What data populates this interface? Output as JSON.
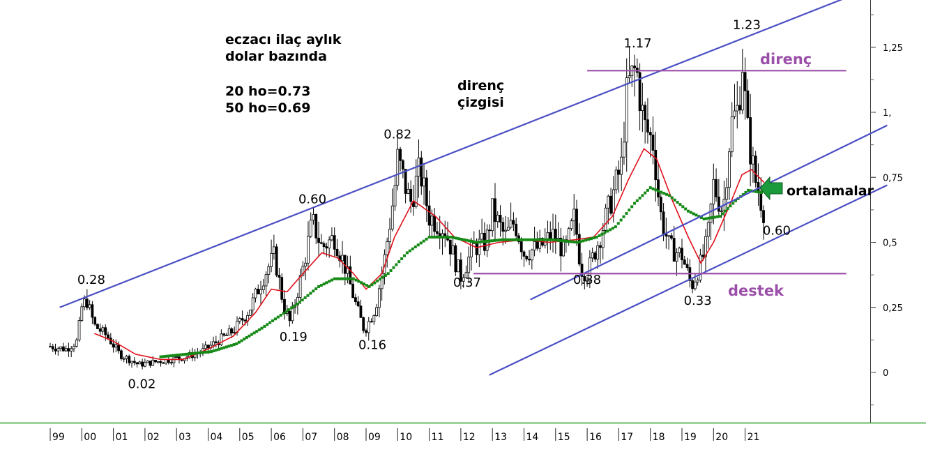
{
  "chart_data": {
    "type": "candlestick",
    "title_lines": [
      "eczacı ilaç aylık",
      "dolar bazında"
    ],
    "ma_lines": [
      "20 ho=0.73",
      "50 ho=0.69"
    ],
    "x_tick_labels": [
      "99",
      "00",
      "01",
      "02",
      "03",
      "04",
      "05",
      "06",
      "07",
      "08",
      "09",
      "10",
      "11",
      "12",
      "13",
      "14",
      "15",
      "16",
      "17",
      "18",
      "19",
      "20",
      "21"
    ],
    "y_tick_labels": [
      "0",
      "0,25",
      "0,5",
      "0,75",
      "1,",
      "1,25"
    ],
    "y_ticks": [
      0,
      0.25,
      0.5,
      0.75,
      1.0,
      1.25
    ],
    "ylim": [
      -0.18,
      1.4
    ],
    "xlim": [
      1999.0,
      2025.25
    ],
    "price_path": [
      [
        1999.0,
        0.1
      ],
      [
        1999.5,
        0.09
      ],
      [
        1999.85,
        0.12
      ],
      [
        2000.0,
        0.25
      ],
      [
        2000.15,
        0.28
      ],
      [
        2000.4,
        0.18
      ],
      [
        2000.8,
        0.14
      ],
      [
        2001.2,
        0.07
      ],
      [
        2001.8,
        0.03
      ],
      [
        2002.3,
        0.04
      ],
      [
        2002.8,
        0.05
      ],
      [
        2003.3,
        0.06
      ],
      [
        2003.8,
        0.08
      ],
      [
        2004.3,
        0.12
      ],
      [
        2004.8,
        0.16
      ],
      [
        2005.3,
        0.24
      ],
      [
        2005.8,
        0.38
      ],
      [
        2006.1,
        0.45
      ],
      [
        2006.4,
        0.25
      ],
      [
        2006.6,
        0.19
      ],
      [
        2007.0,
        0.4
      ],
      [
        2007.3,
        0.58
      ],
      [
        2007.6,
        0.48
      ],
      [
        2008.0,
        0.52
      ],
      [
        2008.3,
        0.42
      ],
      [
        2008.7,
        0.25
      ],
      [
        2008.95,
        0.16
      ],
      [
        2009.3,
        0.25
      ],
      [
        2009.6,
        0.45
      ],
      [
        2009.9,
        0.7
      ],
      [
        2010.0,
        0.82
      ],
      [
        2010.4,
        0.65
      ],
      [
        2010.7,
        0.78
      ],
      [
        2011.0,
        0.6
      ],
      [
        2011.5,
        0.55
      ],
      [
        2011.9,
        0.4
      ],
      [
        2012.0,
        0.37
      ],
      [
        2012.4,
        0.48
      ],
      [
        2012.8,
        0.5
      ],
      [
        2013.0,
        0.62
      ],
      [
        2013.4,
        0.52
      ],
      [
        2013.7,
        0.58
      ],
      [
        2014.0,
        0.46
      ],
      [
        2014.5,
        0.48
      ],
      [
        2014.9,
        0.53
      ],
      [
        2015.3,
        0.46
      ],
      [
        2015.6,
        0.6
      ],
      [
        2015.8,
        0.4
      ],
      [
        2016.0,
        0.38
      ],
      [
        2016.4,
        0.52
      ],
      [
        2016.8,
        0.68
      ],
      [
        2017.1,
        0.8
      ],
      [
        2017.2,
        1.02
      ],
      [
        2017.3,
        1.1
      ],
      [
        2017.55,
        1.17
      ],
      [
        2017.8,
        0.95
      ],
      [
        2018.1,
        0.88
      ],
      [
        2018.3,
        0.62
      ],
      [
        2018.6,
        0.48
      ],
      [
        2019.0,
        0.45
      ],
      [
        2019.3,
        0.33
      ],
      [
        2019.6,
        0.42
      ],
      [
        2019.8,
        0.5
      ],
      [
        2020.0,
        0.72
      ],
      [
        2020.3,
        0.62
      ],
      [
        2020.55,
        0.95
      ],
      [
        2020.8,
        1.02
      ],
      [
        2020.9,
        1.23
      ],
      [
        2021.05,
        0.95
      ],
      [
        2021.3,
        0.75
      ],
      [
        2021.6,
        0.62
      ],
      [
        2021.65,
        0.6
      ]
    ],
    "ma20": [
      [
        2000.4,
        0.15
      ],
      [
        2001.0,
        0.12
      ],
      [
        2001.7,
        0.07
      ],
      [
        2002.5,
        0.05
      ],
      [
        2003.2,
        0.05
      ],
      [
        2004.0,
        0.09
      ],
      [
        2004.8,
        0.14
      ],
      [
        2005.5,
        0.23
      ],
      [
        2006.0,
        0.32
      ],
      [
        2006.5,
        0.31
      ],
      [
        2007.0,
        0.38
      ],
      [
        2007.6,
        0.46
      ],
      [
        2008.1,
        0.44
      ],
      [
        2008.6,
        0.38
      ],
      [
        2009.0,
        0.32
      ],
      [
        2009.5,
        0.38
      ],
      [
        2009.9,
        0.52
      ],
      [
        2010.5,
        0.66
      ],
      [
        2011.2,
        0.6
      ],
      [
        2011.8,
        0.52
      ],
      [
        2012.5,
        0.48
      ],
      [
        2013.2,
        0.5
      ],
      [
        2014.0,
        0.51
      ],
      [
        2014.8,
        0.5
      ],
      [
        2015.6,
        0.51
      ],
      [
        2016.2,
        0.52
      ],
      [
        2016.8,
        0.6
      ],
      [
        2017.3,
        0.74
      ],
      [
        2017.8,
        0.86
      ],
      [
        2018.2,
        0.82
      ],
      [
        2018.7,
        0.66
      ],
      [
        2019.2,
        0.52
      ],
      [
        2019.6,
        0.42
      ],
      [
        2020.0,
        0.5
      ],
      [
        2020.5,
        0.64
      ],
      [
        2020.9,
        0.76
      ],
      [
        2021.2,
        0.78
      ],
      [
        2021.6,
        0.73
      ]
    ],
    "ma50": [
      [
        2002.5,
        0.06
      ],
      [
        2003.3,
        0.07
      ],
      [
        2004.1,
        0.08
      ],
      [
        2004.9,
        0.11
      ],
      [
        2005.7,
        0.17
      ],
      [
        2006.3,
        0.22
      ],
      [
        2006.9,
        0.27
      ],
      [
        2007.5,
        0.33
      ],
      [
        2008.0,
        0.36
      ],
      [
        2008.6,
        0.36
      ],
      [
        2009.1,
        0.33
      ],
      [
        2009.7,
        0.38
      ],
      [
        2010.3,
        0.46
      ],
      [
        2011.0,
        0.52
      ],
      [
        2011.7,
        0.52
      ],
      [
        2012.5,
        0.5
      ],
      [
        2013.3,
        0.51
      ],
      [
        2014.1,
        0.51
      ],
      [
        2014.9,
        0.51
      ],
      [
        2015.7,
        0.5
      ],
      [
        2016.3,
        0.52
      ],
      [
        2016.9,
        0.56
      ],
      [
        2017.5,
        0.65
      ],
      [
        2018.0,
        0.71
      ],
      [
        2018.6,
        0.68
      ],
      [
        2019.2,
        0.62
      ],
      [
        2019.7,
        0.59
      ],
      [
        2020.2,
        0.6
      ],
      [
        2020.7,
        0.66
      ],
      [
        2021.1,
        0.7
      ],
      [
        2021.6,
        0.69
      ]
    ],
    "channel_lines": [
      {
        "from": [
          1999.3,
          0.25
        ],
        "to": [
          2024.4,
          1.45
        ]
      },
      {
        "from": [
          2014.2,
          0.28
        ],
        "to": [
          2025.5,
          0.95
        ]
      },
      {
        "from": [
          2012.9,
          -0.01
        ],
        "to": [
          2025.5,
          0.72
        ]
      }
    ],
    "horizontal_levels": [
      {
        "value": 1.16,
        "from": 2016.0,
        "to": 2024.2,
        "label": "direnç"
      },
      {
        "value": 0.38,
        "from": 2012.4,
        "to": 2024.2,
        "label": "destek"
      }
    ],
    "annotations": [
      {
        "text": "0.28",
        "x": 2000.3,
        "y": 0.34
      },
      {
        "text": "0.02",
        "x": 2001.9,
        "y": -0.06
      },
      {
        "text": "0.60",
        "x": 2007.3,
        "y": 0.65
      },
      {
        "text": "0.19",
        "x": 2006.7,
        "y": 0.12
      },
      {
        "text": "0.16",
        "x": 2009.2,
        "y": 0.09
      },
      {
        "text": "0.82",
        "x": 2010.0,
        "y": 0.9
      },
      {
        "text": "0.37",
        "x": 2012.2,
        "y": 0.33
      },
      {
        "text": "0.38",
        "x": 2016.0,
        "y": 0.34
      },
      {
        "text": "1.17",
        "x": 2017.6,
        "y": 1.25
      },
      {
        "text": "1.23",
        "x": 2021.05,
        "y": 1.32
      },
      {
        "text": "0.33",
        "x": 2019.5,
        "y": 0.26
      },
      {
        "text": "0.60",
        "x": 2022.0,
        "y": 0.53
      }
    ],
    "channel_label_lines": [
      "direnç",
      "çizgisi"
    ],
    "ma_arrow_label": "ortalamalar",
    "colors": {
      "candles": "#000000",
      "ma20": "#e0101a",
      "ma50": "#168a16",
      "channel": "#4a4fc4",
      "levels": "#9b4fa8",
      "arrow": "#1a9a3a",
      "baseline": "#2aa02a"
    }
  }
}
